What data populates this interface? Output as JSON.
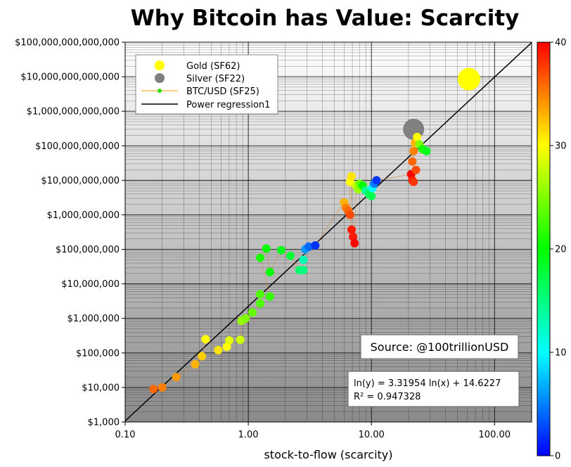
{
  "chart_data": {
    "type": "scatter",
    "title": "Why Bitcoin has Value: Scarcity",
    "xlabel": "stock-to-flow (scarcity)",
    "ylabel": "",
    "xscale": "log",
    "yscale": "log",
    "xlim": [
      0.1,
      200
    ],
    "ylim": [
      1000,
      100000000000000
    ],
    "x_ticks": [
      {
        "value": 0.1,
        "label": "0.10"
      },
      {
        "value": 1,
        "label": "1.00"
      },
      {
        "value": 10,
        "label": "10.00"
      },
      {
        "value": 100,
        "label": "100.00"
      }
    ],
    "y_ticks": [
      {
        "value": 1000,
        "label": "$1,000"
      },
      {
        "value": 10000,
        "label": "$10,000"
      },
      {
        "value": 100000,
        "label": "$100,000"
      },
      {
        "value": 1000000,
        "label": "$1,000,000"
      },
      {
        "value": 10000000,
        "label": "$10,000,000"
      },
      {
        "value": 100000000,
        "label": "$100,000,000"
      },
      {
        "value": 1000000000,
        "label": "$1,000,000,000"
      },
      {
        "value": 10000000000,
        "label": "$10,000,000,000"
      },
      {
        "value": 100000000000,
        "label": "$100,000,000,000"
      },
      {
        "value": 1000000000000,
        "label": "$1,000,000,000,000"
      },
      {
        "value": 10000000000000,
        "label": "$10,000,000,000,000"
      },
      {
        "value": 100000000000000,
        "label": "$100,000,000,000,000"
      }
    ],
    "grid": true,
    "legend_position": "top-left",
    "legend": [
      {
        "label": "Gold (SF62)",
        "marker": "circle",
        "color": "#ffff00"
      },
      {
        "label": "Silver (SF22)",
        "marker": "circle",
        "color": "#808080"
      },
      {
        "label": "BTC/USD (SF25)",
        "marker": "line-dot",
        "color": "#ff9900",
        "dot_color": "#33dd00"
      },
      {
        "label": "Power regression1",
        "marker": "line",
        "color": "#000000"
      }
    ],
    "gold": {
      "x": 62,
      "y": 8500000000000,
      "color": "#ffff00"
    },
    "silver": {
      "x": 22,
      "y": 300000000000,
      "color": "#808080"
    },
    "regression": {
      "slope": 3.31954,
      "intercept": 14.6227,
      "color": "#000000"
    },
    "regression_box": {
      "line1": "ln(y) = 3.31954 ln(x) + 14.6227",
      "line2": "R² = 0.947328"
    },
    "source": "Source: @100trillionUSD",
    "colorbar": {
      "min": 0,
      "max": 40,
      "ticks": [
        {
          "value": 0,
          "label": "0"
        },
        {
          "value": 10,
          "label": "10"
        },
        {
          "value": 20,
          "label": "20"
        },
        {
          "value": 30,
          "label": "30"
        },
        {
          "value": 40,
          "label": "40"
        }
      ],
      "colors": [
        "#0000ff",
        "#00ffff",
        "#00ff00",
        "#ffff00",
        "#ff0000"
      ]
    },
    "series": [
      {
        "name": "BTC/USD (SF25)",
        "points": [
          {
            "x": 0.17,
            "y": 9000,
            "c": 36
          },
          {
            "x": 0.2,
            "y": 10000,
            "c": 35
          },
          {
            "x": 0.26,
            "y": 20000,
            "c": 34
          },
          {
            "x": 0.37,
            "y": 47000,
            "c": 33
          },
          {
            "x": 0.42,
            "y": 80000,
            "c": 32
          },
          {
            "x": 0.45,
            "y": 250000,
            "c": 30
          },
          {
            "x": 0.57,
            "y": 120000,
            "c": 31
          },
          {
            "x": 0.67,
            "y": 150000,
            "c": 30
          },
          {
            "x": 0.7,
            "y": 230000,
            "c": 29
          },
          {
            "x": 0.86,
            "y": 240000,
            "c": 28
          },
          {
            "x": 0.88,
            "y": 850000,
            "c": 26
          },
          {
            "x": 0.95,
            "y": 1000000,
            "c": 25
          },
          {
            "x": 1.08,
            "y": 1500000,
            "c": 24
          },
          {
            "x": 1.25,
            "y": 2700000,
            "c": 23
          },
          {
            "x": 1.25,
            "y": 5000000,
            "c": 23
          },
          {
            "x": 1.5,
            "y": 4300000,
            "c": 22
          },
          {
            "x": 1.25,
            "y": 57000000,
            "c": 21
          },
          {
            "x": 1.4,
            "y": 105000000,
            "c": 20
          },
          {
            "x": 1.5,
            "y": 22000000,
            "c": 20
          },
          {
            "x": 1.85,
            "y": 95000000,
            "c": 19
          },
          {
            "x": 2.2,
            "y": 65000000,
            "c": 18
          },
          {
            "x": 2.6,
            "y": 25000000,
            "c": 16
          },
          {
            "x": 2.8,
            "y": 25000000,
            "c": 15
          },
          {
            "x": 2.8,
            "y": 50000000,
            "c": 13
          },
          {
            "x": 2.9,
            "y": 100000000,
            "c": 6
          },
          {
            "x": 3.1,
            "y": 120000000,
            "c": 4
          },
          {
            "x": 3.5,
            "y": 130000000,
            "c": 2
          },
          {
            "x": 6.0,
            "y": 2300000000,
            "c": 33
          },
          {
            "x": 6.2,
            "y": 1600000000,
            "c": 35
          },
          {
            "x": 6.5,
            "y": 1300000000,
            "c": 36
          },
          {
            "x": 6.7,
            "y": 1000000000,
            "c": 37
          },
          {
            "x": 6.7,
            "y": 9000000000,
            "c": 30
          },
          {
            "x": 6.9,
            "y": 13000000000,
            "c": 31
          },
          {
            "x": 6.9,
            "y": 370000000,
            "c": 39
          },
          {
            "x": 7.1,
            "y": 230000000,
            "c": 39
          },
          {
            "x": 7.3,
            "y": 150000000,
            "c": 40
          },
          {
            "x": 7.5,
            "y": 7000000000,
            "c": 28
          },
          {
            "x": 7.8,
            "y": 5500000000,
            "c": 26
          },
          {
            "x": 8.0,
            "y": 8000000000,
            "c": 24
          },
          {
            "x": 8.5,
            "y": 7000000000,
            "c": 20
          },
          {
            "x": 9.0,
            "y": 5000000000,
            "c": 14
          },
          {
            "x": 9.5,
            "y": 4000000000,
            "c": 16
          },
          {
            "x": 10.0,
            "y": 3500000000,
            "c": 17
          },
          {
            "x": 10.2,
            "y": 6000000000,
            "c": 10
          },
          {
            "x": 10.5,
            "y": 8000000000,
            "c": 5
          },
          {
            "x": 11.0,
            "y": 10000000000,
            "c": 2
          },
          {
            "x": 21.0,
            "y": 15000000000,
            "c": 40
          },
          {
            "x": 21.5,
            "y": 10000000000,
            "c": 39
          },
          {
            "x": 22.0,
            "y": 9000000000,
            "c": 38
          },
          {
            "x": 23.0,
            "y": 20000000000,
            "c": 37
          },
          {
            "x": 21.5,
            "y": 35000000000,
            "c": 36
          },
          {
            "x": 22.0,
            "y": 70000000000,
            "c": 35
          },
          {
            "x": 22.5,
            "y": 120000000000,
            "c": 33
          },
          {
            "x": 23.5,
            "y": 180000000000,
            "c": 30
          },
          {
            "x": 24.5,
            "y": 110000000000,
            "c": 25
          },
          {
            "x": 26.0,
            "y": 80000000000,
            "c": 21
          },
          {
            "x": 28.0,
            "y": 70000000000,
            "c": 19
          }
        ]
      }
    ]
  }
}
